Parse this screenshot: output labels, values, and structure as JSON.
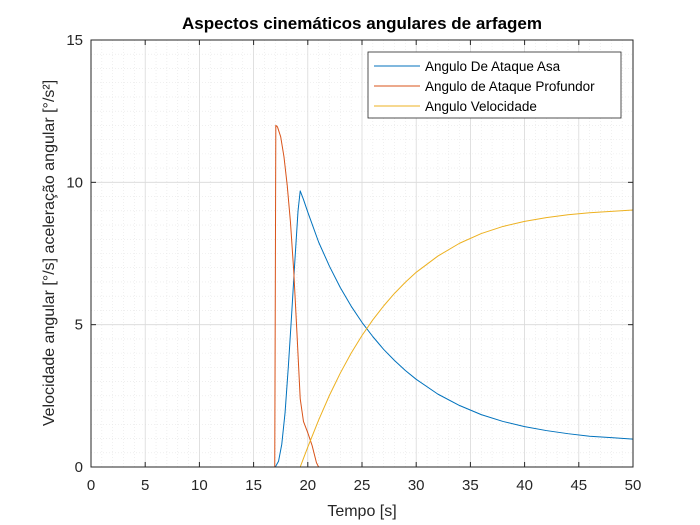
{
  "chart_data": {
    "type": "line",
    "title": "Aspectos cinemáticos angulares de arfagem",
    "xlabel": "Tempo [s]",
    "ylabel": "Velocidade angular [°/s] aceleração angular [°/s²]",
    "xlim": [
      0,
      50
    ],
    "ylim": [
      0,
      15
    ],
    "xticks": [
      "0",
      "5",
      "10",
      "15",
      "20",
      "25",
      "30",
      "35",
      "40",
      "45",
      "50"
    ],
    "yticks": [
      "0",
      "5",
      "10",
      "15"
    ],
    "grid": "major-and-minor",
    "legend_position": "top-right",
    "series": [
      {
        "name": "Angulo De Ataque Asa",
        "color": "#0072BD",
        "x": [
          0,
          17.0,
          17.3,
          17.6,
          17.9,
          18.2,
          18.5,
          18.8,
          19.1,
          19.3,
          19.6,
          20,
          21,
          22,
          23,
          24,
          25,
          26,
          27,
          28,
          29,
          30,
          32,
          34,
          36,
          38,
          40,
          42,
          44,
          46,
          48,
          50
        ],
        "y": [
          0,
          0,
          0.2,
          0.8,
          1.9,
          3.5,
          5.3,
          7.2,
          9.0,
          9.7,
          9.4,
          8.95,
          7.9,
          7.05,
          6.3,
          5.65,
          5.08,
          4.58,
          4.13,
          3.74,
          3.39,
          3.08,
          2.56,
          2.16,
          1.84,
          1.6,
          1.42,
          1.28,
          1.17,
          1.08,
          1.03,
          0.98
        ]
      },
      {
        "name": "Angulo de Ataque Profundor",
        "color": "#D95319",
        "x": [
          0,
          16.95,
          17.0,
          17.05,
          17.2,
          17.5,
          17.8,
          18.1,
          18.4,
          18.7,
          19.0,
          19.3,
          19.6,
          20.0,
          20.4,
          20.8,
          21.0,
          50
        ],
        "y": [
          0,
          0,
          6.0,
          12.0,
          11.95,
          11.6,
          10.9,
          9.9,
          8.6,
          6.9,
          4.7,
          2.4,
          1.6,
          1.2,
          0.75,
          0.15,
          0,
          0
        ]
      },
      {
        "name": "Angulo Velocidade",
        "color": "#EDB120",
        "x": [
          0,
          19.3,
          19.6,
          20,
          21,
          22,
          23,
          24,
          25,
          26,
          27,
          28,
          29,
          30,
          32,
          34,
          36,
          38,
          40,
          42,
          44,
          46,
          48,
          50
        ],
        "y": [
          0,
          0,
          0.3,
          0.7,
          1.65,
          2.52,
          3.3,
          4.0,
          4.62,
          5.17,
          5.66,
          6.1,
          6.49,
          6.84,
          7.41,
          7.86,
          8.2,
          8.45,
          8.63,
          8.76,
          8.86,
          8.93,
          8.98,
          9.03
        ]
      }
    ]
  }
}
